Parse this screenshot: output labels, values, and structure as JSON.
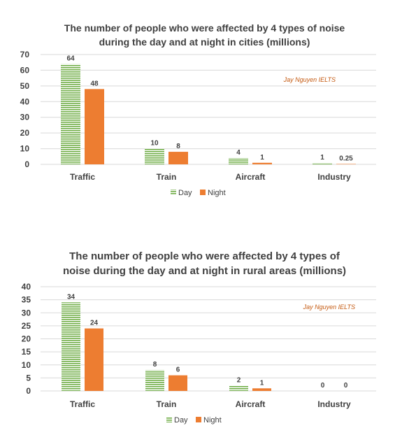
{
  "chart_data": [
    {
      "type": "bar",
      "title_lines": [
        "The number of people who were affected by 4 types of noise",
        "during the day and at night in cities (millions)"
      ],
      "categories": [
        "Traffic",
        "Train",
        "Aircraft",
        "Industry"
      ],
      "series": [
        {
          "name": "Day",
          "values": [
            64,
            10,
            4,
            1
          ],
          "labels": [
            "64",
            "10",
            "4",
            "1"
          ]
        },
        {
          "name": "Night",
          "values": [
            48,
            8,
            1,
            0.25
          ],
          "labels": [
            "48",
            "8",
            "1",
            "0.25"
          ]
        }
      ],
      "yticks": [
        "0",
        "10",
        "20",
        "30",
        "40",
        "50",
        "60",
        "70"
      ],
      "ylim": [
        0,
        70
      ],
      "grid": true,
      "legend": "bottom",
      "watermark": "Jay Nguyen IELTS"
    },
    {
      "type": "bar",
      "title_lines": [
        "The number of people who were affected by 4 types of",
        "noise during the day and at night in rural areas (millions)"
      ],
      "categories": [
        "Traffic",
        "Train",
        "Aircraft",
        "Industry"
      ],
      "series": [
        {
          "name": "Day",
          "values": [
            34,
            8,
            2,
            0
          ],
          "labels": [
            "34",
            "8",
            "2",
            "0"
          ]
        },
        {
          "name": "Night",
          "values": [
            24,
            6,
            1,
            0
          ],
          "labels": [
            "24",
            "6",
            "1",
            "0"
          ]
        }
      ],
      "yticks": [
        "0",
        "5",
        "10",
        "15",
        "20",
        "25",
        "30",
        "35",
        "40"
      ],
      "ylim": [
        0,
        40
      ],
      "grid": true,
      "legend": "bottom",
      "watermark": "Jay Nguyen IELTS"
    }
  ],
  "colors": {
    "day": "#70ad47",
    "night": "#ed7d31",
    "text": "#404040",
    "grid": "#d9d9d9",
    "watermark": "#c55a11"
  }
}
